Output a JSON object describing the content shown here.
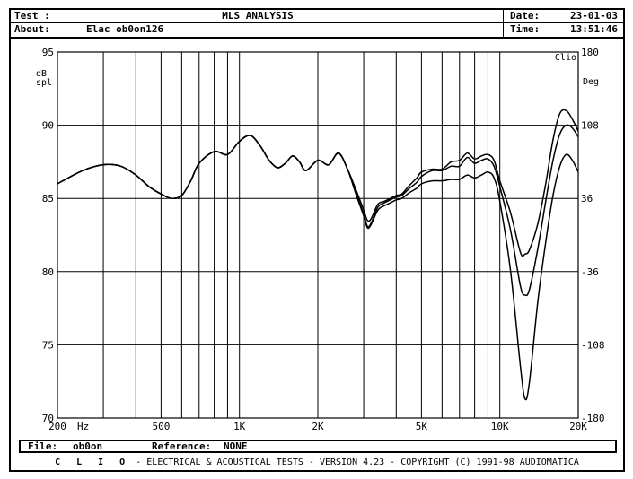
{
  "header": {
    "test_label": "Test :",
    "test_value": "",
    "title": "MLS ANALYSIS",
    "date_label": "Date:",
    "date_value": "23-01-03",
    "about_label": "About:",
    "about_value": "Elac ob0on126",
    "time_label": "Time:",
    "time_value": "13:51:46"
  },
  "footer_bar": {
    "file_label": "File:",
    "file_value": "ob0on",
    "reference_label": "Reference:",
    "reference_value": "NONE"
  },
  "footer": {
    "clio": "C L I O",
    "text": "- ELECTRICAL & ACOUSTICAL TESTS - VERSION 4.23 - COPYRIGHT (C) 1991-98 AUDIOMATICA"
  },
  "chart_data": {
    "type": "line",
    "title": "MLS ANALYSIS",
    "brand_label": "Clio",
    "ylabel_lines": [
      "dB",
      "spl"
    ],
    "ylabel_right": "Deg",
    "x_scale": "log",
    "xlim": [
      200,
      20000
    ],
    "ylim": [
      70,
      95
    ],
    "ylim_right": [
      -180,
      180
    ],
    "x_ticks": [
      {
        "value": 200,
        "label": "200"
      },
      {
        "value": 500,
        "label": "500"
      },
      {
        "value": 1000,
        "label": "1K"
      },
      {
        "value": 2000,
        "label": "2K"
      },
      {
        "value": 5000,
        "label": "5K"
      },
      {
        "value": 10000,
        "label": "10K"
      },
      {
        "value": 20000,
        "label": "20K"
      }
    ],
    "x_unit": "Hz",
    "y_ticks": [
      95,
      90,
      85,
      80,
      75,
      70
    ],
    "y_ticks_right": [
      "180",
      "108",
      "36",
      "-36",
      "-108",
      "-180"
    ],
    "grid": true,
    "series": [
      {
        "x": [
          200,
          250,
          300,
          350,
          400,
          450,
          500,
          550,
          600,
          650,
          700,
          800,
          900,
          1000,
          1100,
          1200,
          1300,
          1400,
          1500,
          1600,
          1700,
          1800,
          2000,
          2200,
          2400,
          2600,
          2800,
          3000,
          3100,
          3200,
          3400,
          3600,
          3800,
          4000,
          4200,
          4500,
          4800,
          5000,
          5500,
          6000,
          6500,
          7000,
          7500,
          8000,
          8500,
          9000,
          9500,
          10000,
          11000,
          12000,
          12500,
          13000,
          14000,
          15000,
          16000,
          17000,
          18000,
          19000,
          20000
        ],
        "y": [
          86.0,
          86.9,
          87.3,
          87.2,
          86.6,
          85.8,
          85.3,
          85.0,
          85.2,
          86.2,
          87.4,
          88.2,
          88.0,
          88.9,
          89.3,
          88.6,
          87.6,
          87.1,
          87.4,
          87.9,
          87.5,
          86.9,
          87.6,
          87.3,
          88.1,
          87.0,
          85.6,
          84.2,
          83.5,
          83.6,
          84.6,
          84.8,
          85.0,
          85.2,
          85.3,
          85.9,
          86.4,
          86.8,
          87.0,
          87.0,
          87.5,
          87.6,
          88.1,
          87.7,
          87.9,
          88.0,
          87.6,
          86.2,
          84.0,
          81.3,
          81.2,
          81.5,
          83.3,
          86.0,
          89.0,
          90.8,
          91.0,
          90.4,
          89.6
        ]
      },
      {
        "x": [
          200,
          250,
          300,
          350,
          400,
          450,
          500,
          550,
          600,
          650,
          700,
          800,
          900,
          1000,
          1100,
          1200,
          1300,
          1400,
          1500,
          1600,
          1700,
          1800,
          2000,
          2200,
          2400,
          2600,
          2800,
          3000,
          3100,
          3200,
          3400,
          3600,
          3800,
          4000,
          4200,
          4500,
          4800,
          5000,
          5500,
          6000,
          6500,
          7000,
          7500,
          8000,
          8500,
          9000,
          9500,
          10000,
          11000,
          12000,
          12500,
          13000,
          14000,
          15000,
          16000,
          17000,
          18000,
          19000,
          20000
        ],
        "y": [
          86.0,
          86.9,
          87.3,
          87.2,
          86.6,
          85.8,
          85.3,
          85.0,
          85.2,
          86.2,
          87.4,
          88.2,
          88.0,
          88.9,
          89.3,
          88.6,
          87.6,
          87.1,
          87.4,
          87.9,
          87.5,
          86.9,
          87.6,
          87.3,
          88.1,
          87.0,
          85.4,
          83.9,
          83.1,
          83.3,
          84.4,
          84.7,
          84.9,
          85.1,
          85.2,
          85.7,
          86.1,
          86.5,
          86.9,
          86.9,
          87.2,
          87.2,
          87.8,
          87.4,
          87.6,
          87.7,
          87.2,
          85.8,
          82.8,
          79.0,
          78.4,
          78.8,
          81.6,
          84.8,
          87.6,
          89.4,
          90.0,
          89.8,
          89.2
        ]
      },
      {
        "x": [
          200,
          250,
          300,
          350,
          400,
          450,
          500,
          550,
          600,
          650,
          700,
          800,
          900,
          1000,
          1100,
          1200,
          1300,
          1400,
          1500,
          1600,
          1700,
          1800,
          2000,
          2200,
          2400,
          2600,
          2800,
          3000,
          3100,
          3200,
          3400,
          3600,
          3800,
          4000,
          4200,
          4500,
          4800,
          5000,
          5500,
          6000,
          6500,
          7000,
          7500,
          8000,
          8500,
          9000,
          9500,
          10000,
          11000,
          12000,
          12500,
          13000,
          14000,
          15000,
          16000,
          17000,
          18000,
          19000,
          20000
        ],
        "y": [
          86.0,
          86.9,
          87.3,
          87.2,
          86.6,
          85.8,
          85.3,
          85.0,
          85.2,
          86.2,
          87.4,
          88.2,
          88.0,
          88.9,
          89.3,
          88.6,
          87.6,
          87.1,
          87.4,
          87.9,
          87.5,
          86.9,
          87.6,
          87.3,
          88.1,
          87.0,
          85.3,
          83.8,
          83.0,
          83.2,
          84.2,
          84.5,
          84.7,
          84.9,
          85.0,
          85.4,
          85.7,
          86.0,
          86.2,
          86.2,
          86.3,
          86.3,
          86.6,
          86.4,
          86.6,
          86.8,
          86.4,
          84.8,
          80.0,
          73.5,
          71.3,
          72.5,
          78.0,
          82.0,
          85.2,
          87.2,
          88.0,
          87.6,
          86.8
        ]
      }
    ]
  }
}
